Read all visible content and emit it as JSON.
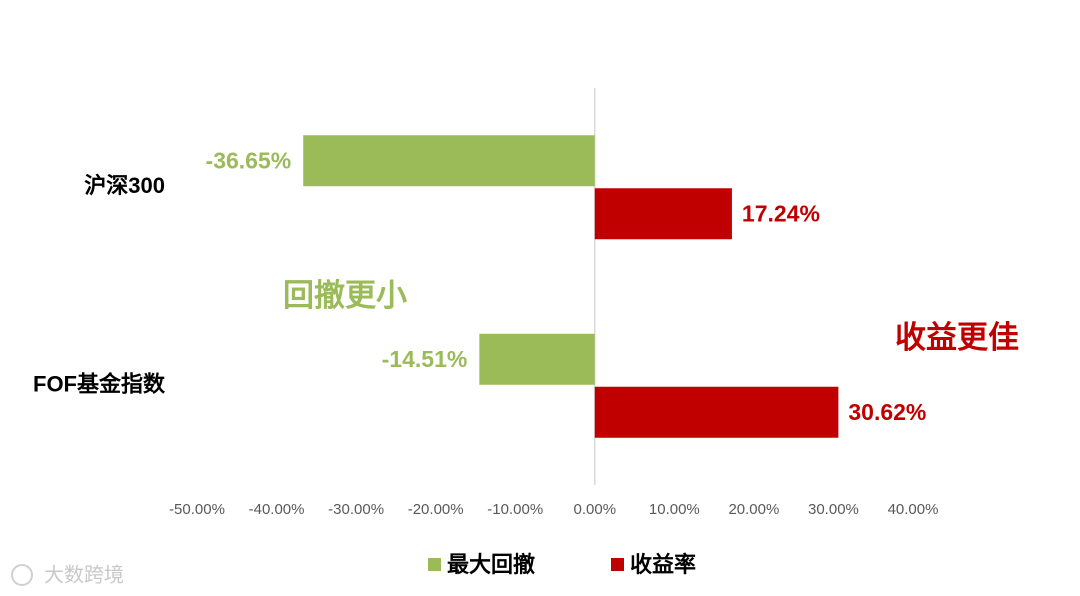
{
  "chart_data": {
    "type": "hbar",
    "categories": [
      "沪深300",
      "FOF基金指数"
    ],
    "series": [
      {
        "name": "最大回撤",
        "color": "#9bbb59",
        "values": [
          -36.65,
          -14.51
        ],
        "value_labels": [
          "-36.65%",
          "-14.51%"
        ]
      },
      {
        "name": "收益率",
        "color": "#c00000",
        "values": [
          17.24,
          30.62
        ],
        "value_labels": [
          "17.24%",
          "30.62%"
        ]
      }
    ],
    "xlim": [
      -50,
      40
    ],
    "xticks": [
      {
        "value": -50,
        "label": "-50.00%"
      },
      {
        "value": -40,
        "label": "-40.00%"
      },
      {
        "value": -30,
        "label": "-30.00%"
      },
      {
        "value": -20,
        "label": "-20.00%"
      },
      {
        "value": -10,
        "label": "-10.00%"
      },
      {
        "value": 0,
        "label": "0.00%"
      },
      {
        "value": 10,
        "label": "10.00%"
      },
      {
        "value": 20,
        "label": "20.00%"
      },
      {
        "value": 30,
        "label": "30.00%"
      },
      {
        "value": 40,
        "label": "40.00%"
      }
    ],
    "annotations": [
      {
        "text": "回撤更小",
        "color": "#9bbb59"
      },
      {
        "text": "收益更佳",
        "color": "#c00000"
      }
    ],
    "legend": "bottom",
    "watermark": "大数跨境"
  }
}
